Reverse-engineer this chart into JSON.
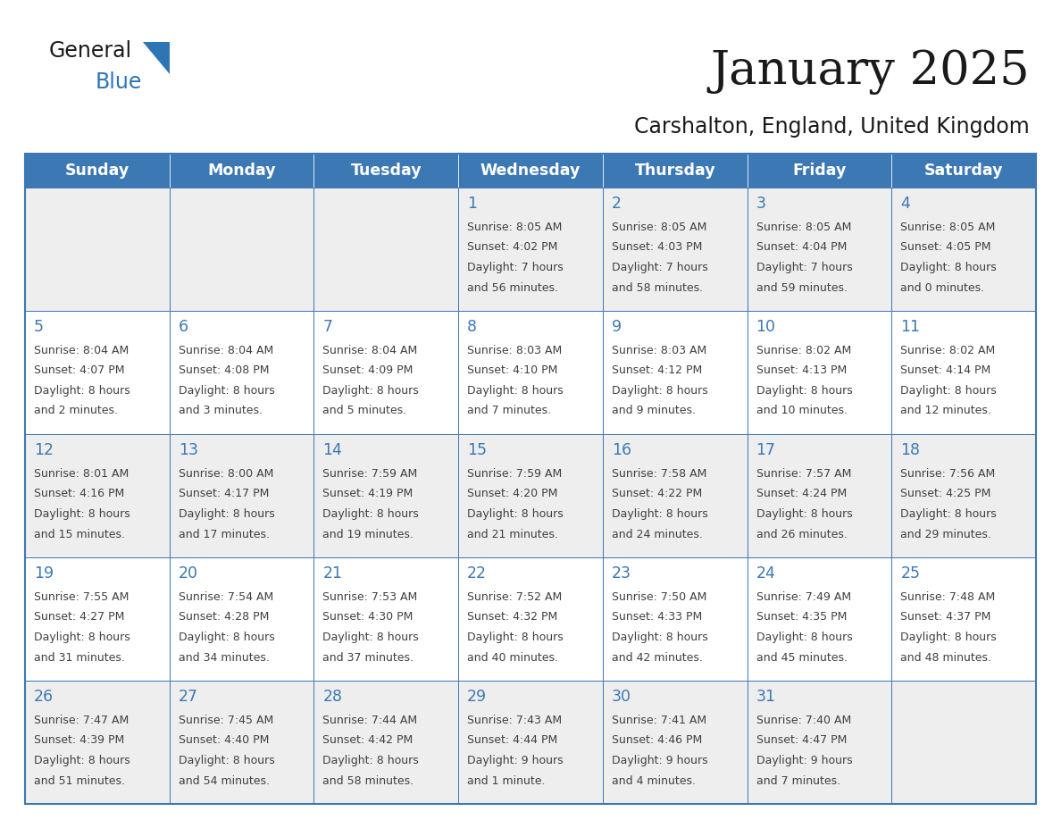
{
  "title": "January 2025",
  "subtitle": "Carshalton, England, United Kingdom",
  "days_of_week": [
    "Sunday",
    "Monday",
    "Tuesday",
    "Wednesday",
    "Thursday",
    "Friday",
    "Saturday"
  ],
  "header_bg": "#3C78B4",
  "header_text": "#FFFFFF",
  "cell_bg_white": "#FFFFFF",
  "cell_bg_gray": "#EEEEEE",
  "border_color": "#3C78B4",
  "day_num_color": "#3C78B4",
  "cell_text_color": "#404040",
  "title_color": "#1a1a1a",
  "subtitle_color": "#1a1a1a",
  "logo_general_color": "#1a1a1a",
  "logo_blue_color": "#2E75B6",
  "weeks": [
    [
      {
        "day": "",
        "sunrise": "",
        "sunset": "",
        "daylight": ""
      },
      {
        "day": "",
        "sunrise": "",
        "sunset": "",
        "daylight": ""
      },
      {
        "day": "",
        "sunrise": "",
        "sunset": "",
        "daylight": ""
      },
      {
        "day": "1",
        "sunrise": "8:05 AM",
        "sunset": "4:02 PM",
        "daylight": "7 hours",
        "daylight2": "and 56 minutes."
      },
      {
        "day": "2",
        "sunrise": "8:05 AM",
        "sunset": "4:03 PM",
        "daylight": "7 hours",
        "daylight2": "and 58 minutes."
      },
      {
        "day": "3",
        "sunrise": "8:05 AM",
        "sunset": "4:04 PM",
        "daylight": "7 hours",
        "daylight2": "and 59 minutes."
      },
      {
        "day": "4",
        "sunrise": "8:05 AM",
        "sunset": "4:05 PM",
        "daylight": "8 hours",
        "daylight2": "and 0 minutes."
      }
    ],
    [
      {
        "day": "5",
        "sunrise": "8:04 AM",
        "sunset": "4:07 PM",
        "daylight": "8 hours",
        "daylight2": "and 2 minutes."
      },
      {
        "day": "6",
        "sunrise": "8:04 AM",
        "sunset": "4:08 PM",
        "daylight": "8 hours",
        "daylight2": "and 3 minutes."
      },
      {
        "day": "7",
        "sunrise": "8:04 AM",
        "sunset": "4:09 PM",
        "daylight": "8 hours",
        "daylight2": "and 5 minutes."
      },
      {
        "day": "8",
        "sunrise": "8:03 AM",
        "sunset": "4:10 PM",
        "daylight": "8 hours",
        "daylight2": "and 7 minutes."
      },
      {
        "day": "9",
        "sunrise": "8:03 AM",
        "sunset": "4:12 PM",
        "daylight": "8 hours",
        "daylight2": "and 9 minutes."
      },
      {
        "day": "10",
        "sunrise": "8:02 AM",
        "sunset": "4:13 PM",
        "daylight": "8 hours",
        "daylight2": "and 10 minutes."
      },
      {
        "day": "11",
        "sunrise": "8:02 AM",
        "sunset": "4:14 PM",
        "daylight": "8 hours",
        "daylight2": "and 12 minutes."
      }
    ],
    [
      {
        "day": "12",
        "sunrise": "8:01 AM",
        "sunset": "4:16 PM",
        "daylight": "8 hours",
        "daylight2": "and 15 minutes."
      },
      {
        "day": "13",
        "sunrise": "8:00 AM",
        "sunset": "4:17 PM",
        "daylight": "8 hours",
        "daylight2": "and 17 minutes."
      },
      {
        "day": "14",
        "sunrise": "7:59 AM",
        "sunset": "4:19 PM",
        "daylight": "8 hours",
        "daylight2": "and 19 minutes."
      },
      {
        "day": "15",
        "sunrise": "7:59 AM",
        "sunset": "4:20 PM",
        "daylight": "8 hours",
        "daylight2": "and 21 minutes."
      },
      {
        "day": "16",
        "sunrise": "7:58 AM",
        "sunset": "4:22 PM",
        "daylight": "8 hours",
        "daylight2": "and 24 minutes."
      },
      {
        "day": "17",
        "sunrise": "7:57 AM",
        "sunset": "4:24 PM",
        "daylight": "8 hours",
        "daylight2": "and 26 minutes."
      },
      {
        "day": "18",
        "sunrise": "7:56 AM",
        "sunset": "4:25 PM",
        "daylight": "8 hours",
        "daylight2": "and 29 minutes."
      }
    ],
    [
      {
        "day": "19",
        "sunrise": "7:55 AM",
        "sunset": "4:27 PM",
        "daylight": "8 hours",
        "daylight2": "and 31 minutes."
      },
      {
        "day": "20",
        "sunrise": "7:54 AM",
        "sunset": "4:28 PM",
        "daylight": "8 hours",
        "daylight2": "and 34 minutes."
      },
      {
        "day": "21",
        "sunrise": "7:53 AM",
        "sunset": "4:30 PM",
        "daylight": "8 hours",
        "daylight2": "and 37 minutes."
      },
      {
        "day": "22",
        "sunrise": "7:52 AM",
        "sunset": "4:32 PM",
        "daylight": "8 hours",
        "daylight2": "and 40 minutes."
      },
      {
        "day": "23",
        "sunrise": "7:50 AM",
        "sunset": "4:33 PM",
        "daylight": "8 hours",
        "daylight2": "and 42 minutes."
      },
      {
        "day": "24",
        "sunrise": "7:49 AM",
        "sunset": "4:35 PM",
        "daylight": "8 hours",
        "daylight2": "and 45 minutes."
      },
      {
        "day": "25",
        "sunrise": "7:48 AM",
        "sunset": "4:37 PM",
        "daylight": "8 hours",
        "daylight2": "and 48 minutes."
      }
    ],
    [
      {
        "day": "26",
        "sunrise": "7:47 AM",
        "sunset": "4:39 PM",
        "daylight": "8 hours",
        "daylight2": "and 51 minutes."
      },
      {
        "day": "27",
        "sunrise": "7:45 AM",
        "sunset": "4:40 PM",
        "daylight": "8 hours",
        "daylight2": "and 54 minutes."
      },
      {
        "day": "28",
        "sunrise": "7:44 AM",
        "sunset": "4:42 PM",
        "daylight": "8 hours",
        "daylight2": "and 58 minutes."
      },
      {
        "day": "29",
        "sunrise": "7:43 AM",
        "sunset": "4:44 PM",
        "daylight": "9 hours",
        "daylight2": "and 1 minute."
      },
      {
        "day": "30",
        "sunrise": "7:41 AM",
        "sunset": "4:46 PM",
        "daylight": "9 hours",
        "daylight2": "and 4 minutes."
      },
      {
        "day": "31",
        "sunrise": "7:40 AM",
        "sunset": "4:47 PM",
        "daylight": "9 hours",
        "daylight2": "and 7 minutes."
      },
      {
        "day": "",
        "sunrise": "",
        "sunset": "",
        "daylight": "",
        "daylight2": ""
      }
    ]
  ]
}
